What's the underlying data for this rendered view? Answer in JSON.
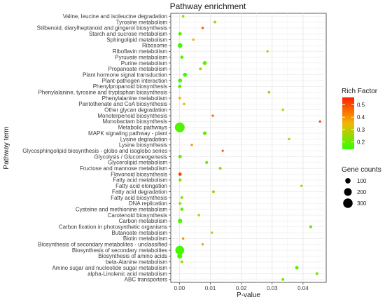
{
  "chart_data": {
    "type": "scatter",
    "title": "Pathway enrichment",
    "xlabel": "P-value",
    "ylabel": "Pathway term",
    "xlim": [
      -0.0028,
      0.0475
    ],
    "x_ticks": [
      "0.00",
      "0.01",
      "0.02",
      "0.03",
      "0.04"
    ],
    "x_tick_values": [
      0,
      0.01,
      0.02,
      0.03,
      0.04
    ],
    "grid": true,
    "color_scale": {
      "low": "#33ff00",
      "mid": "#f2b705",
      "high": "#ff1f00",
      "min": 0.1,
      "max": 0.6
    },
    "size_scale": {
      "min_count": 20,
      "max_count": 320
    },
    "points": [
      {
        "term": "Valine, leucine and isoleucine degradation",
        "p": 0.0012,
        "rich": 0.22,
        "count": 25
      },
      {
        "term": "Tyrosine metabolism",
        "p": 0.0115,
        "rich": 0.28,
        "count": 30
      },
      {
        "term": "Stilbenoid, diarylheptanoid and gingerol biosynthesis",
        "p": 0.0075,
        "rich": 0.5,
        "count": 22
      },
      {
        "term": "Starch and sucrose metabolism",
        "p": 0.0002,
        "rich": 0.15,
        "count": 45
      },
      {
        "term": "Sphingolipid metabolism",
        "p": 0.0045,
        "rich": 0.35,
        "count": 22
      },
      {
        "term": "Ribosome",
        "p": 0.0002,
        "rich": 0.12,
        "count": 80
      },
      {
        "term": "Riboflavin metabolism",
        "p": 0.0285,
        "rich": 0.28,
        "count": 22
      },
      {
        "term": "Pyruvate metabolism",
        "p": 0.0008,
        "rich": 0.15,
        "count": 40
      },
      {
        "term": "Purine metabolism",
        "p": 0.0082,
        "rich": 0.16,
        "count": 60
      },
      {
        "term": "Propanoate metabolism",
        "p": 0.0068,
        "rich": 0.25,
        "count": 30
      },
      {
        "term": "Plant hormone signal transduction",
        "p": 0.0018,
        "rich": 0.12,
        "count": 60
      },
      {
        "term": "Plant-pathogen interaction",
        "p": 0.0002,
        "rich": 0.13,
        "count": 55
      },
      {
        "term": "Phenylpropanoid biosynthesis",
        "p": 0.0001,
        "rich": 0.15,
        "count": 45
      },
      {
        "term": "Phenylalanine, tyrosine and tryptophan biosynthesis",
        "p": 0.029,
        "rich": 0.22,
        "count": 25
      },
      {
        "term": "Phenylalanine metabolism",
        "p": 0.0001,
        "rich": 0.33,
        "count": 28
      },
      {
        "term": "Pantothenate and CoA biosynthesis",
        "p": 0.0015,
        "rich": 0.33,
        "count": 25
      },
      {
        "term": "Other glycan degradation",
        "p": 0.0335,
        "rich": 0.3,
        "count": 22
      },
      {
        "term": "Monoterpenoid biosynthesis",
        "p": 0.0108,
        "rich": 0.5,
        "count": 20
      },
      {
        "term": "Monobactam biosynthesis",
        "p": 0.0455,
        "rich": 0.55,
        "count": 20
      },
      {
        "term": "Metabolic pathways",
        "p": 0.0001,
        "rich": 0.14,
        "count": 320
      },
      {
        "term": "MAPK signaling pathway - plant",
        "p": 0.0082,
        "rich": 0.17,
        "count": 50
      },
      {
        "term": "Lysine degradation",
        "p": 0.0355,
        "rich": 0.28,
        "count": 22
      },
      {
        "term": "Lysine biosynthesis",
        "p": 0.004,
        "rich": 0.4,
        "count": 22
      },
      {
        "term": "Glycosphingolipid biosynthesis - globo and isoglobo series",
        "p": 0.014,
        "rich": 0.52,
        "count": 20
      },
      {
        "term": "Glycolysis / Gluconeogenesis",
        "p": 0.0002,
        "rich": 0.18,
        "count": 45
      },
      {
        "term": "Glycerolipid metabolism",
        "p": 0.0088,
        "rich": 0.2,
        "count": 35
      },
      {
        "term": "Fructose and mannose metabolism",
        "p": 0.0132,
        "rich": 0.22,
        "count": 30
      },
      {
        "term": "Flavonoid biosynthesis",
        "p": 0.0002,
        "rich": 0.55,
        "count": 40
      },
      {
        "term": "Fatty acid metabolism",
        "p": 0.0002,
        "rich": 0.2,
        "count": 35
      },
      {
        "term": "Fatty acid elongation",
        "p": 0.0395,
        "rich": 0.25,
        "count": 22
      },
      {
        "term": "Fatty acid degradation",
        "p": 0.011,
        "rich": 0.22,
        "count": 30
      },
      {
        "term": "Fatty acid biosynthesis",
        "p": 0.0008,
        "rich": 0.22,
        "count": 28
      },
      {
        "term": "DNA replication",
        "p": 0.0002,
        "rich": 0.2,
        "count": 28
      },
      {
        "term": "Cysteine and methionine metabolism",
        "p": 0.0008,
        "rich": 0.18,
        "count": 40
      },
      {
        "term": "Carotenoid biosynthesis",
        "p": 0.0063,
        "rich": 0.3,
        "count": 25
      },
      {
        "term": "Carbon metabolism",
        "p": 0.0002,
        "rich": 0.14,
        "count": 70
      },
      {
        "term": "Carbon fixation in photosynthetic organisms",
        "p": 0.0425,
        "rich": 0.18,
        "count": 35
      },
      {
        "term": "Butanoate metabolism",
        "p": 0.0105,
        "rich": 0.3,
        "count": 22
      },
      {
        "term": "Biotin metabolism",
        "p": 0.0012,
        "rich": 0.42,
        "count": 22
      },
      {
        "term": "Biosynthesis of secondary metabolites - unclassified",
        "p": 0.0075,
        "rich": 0.38,
        "count": 22
      },
      {
        "term": "Biosynthesis of secondary metabolites",
        "p": 0.0001,
        "rich": 0.12,
        "count": 260
      },
      {
        "term": "Biosynthesis of amino acids",
        "p": 0.0001,
        "rich": 0.13,
        "count": 90
      },
      {
        "term": "beta-Alanine metabolism",
        "p": 0.0008,
        "rich": 0.25,
        "count": 30
      },
      {
        "term": "Amino sugar and nucleotide sugar metabolism",
        "p": 0.038,
        "rich": 0.15,
        "count": 45
      },
      {
        "term": "alpha-Linolenic acid metabolism",
        "p": 0.0445,
        "rich": 0.2,
        "count": 30
      },
      {
        "term": "ABC transporters",
        "p": 0.0335,
        "rich": 0.2,
        "count": 28
      }
    ]
  },
  "legend": {
    "rich_title": "Rich Factor",
    "rich_ticks": [
      "0.5",
      "0.4",
      "0.3",
      "0.2"
    ],
    "rich_tick_values": [
      0.5,
      0.4,
      0.3,
      0.2
    ],
    "gene_title": "Gene counts",
    "gene_items": [
      {
        "label": "100",
        "count": 100
      },
      {
        "label": "200",
        "count": 200
      },
      {
        "label": "300",
        "count": 300
      }
    ]
  }
}
